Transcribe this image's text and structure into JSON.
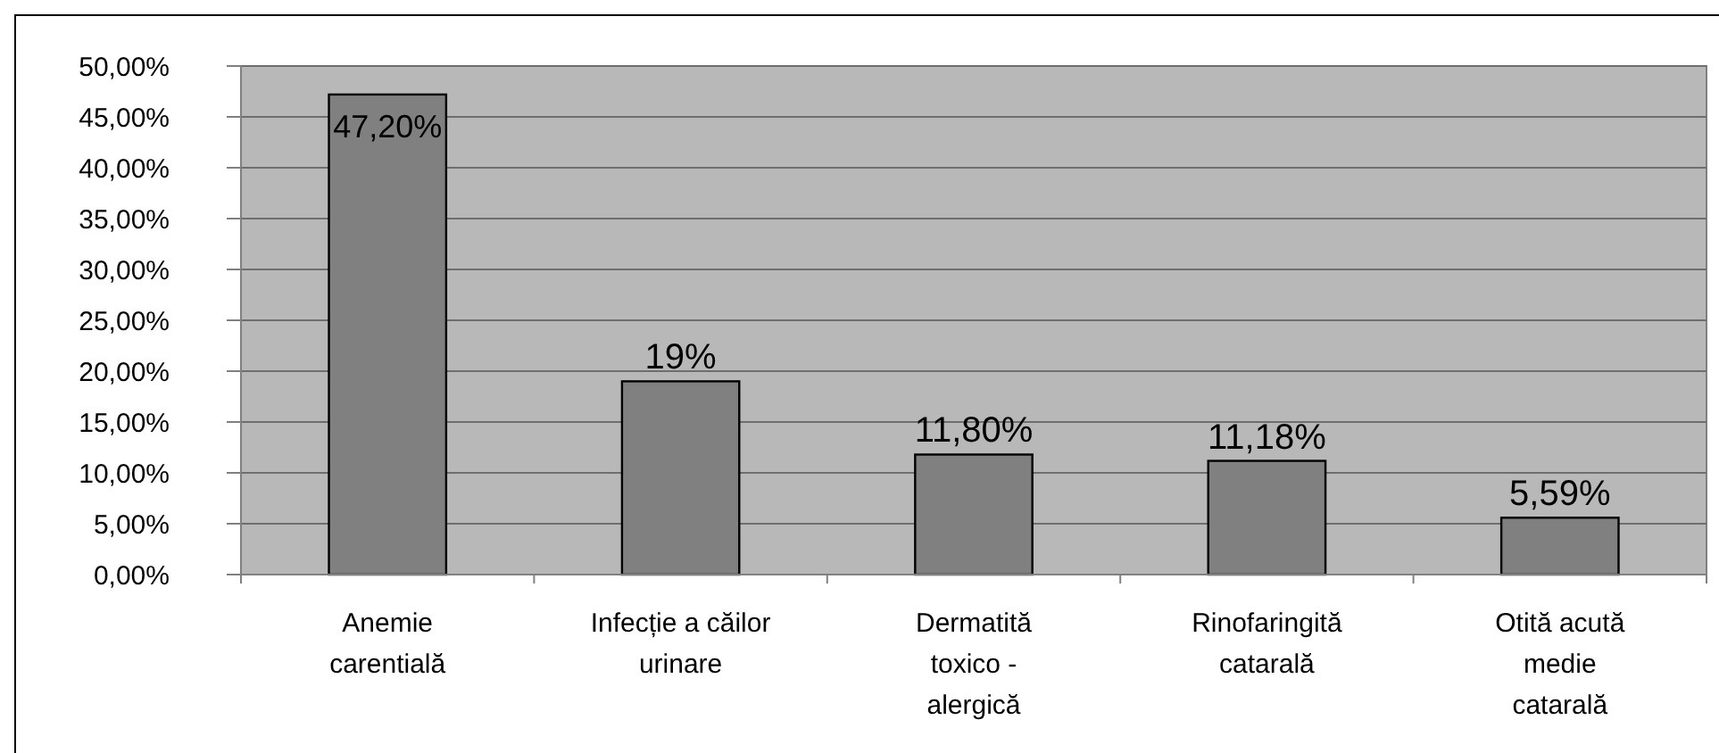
{
  "chart_data": {
    "type": "bar",
    "categories": [
      "Anemie\ncarentială",
      "Infecție a căilor\nurinare",
      "Dermatită\ntoxico -\nalergică",
      "Rinofaringită\ncatarală",
      "Otită acută\nmedie\ncatarală"
    ],
    "values": [
      47.2,
      19,
      11.8,
      11.18,
      5.59
    ],
    "value_labels": [
      "47,20%",
      "19%",
      "11,80%",
      "11,18%",
      "5,59%"
    ],
    "color": "#808080",
    "ylim": [
      0,
      50
    ],
    "yticks": [
      {
        "value": 0,
        "label": "0,00%"
      },
      {
        "value": 5,
        "label": "5,00%"
      },
      {
        "value": 10,
        "label": "10,00%"
      },
      {
        "value": 15,
        "label": "15,00%"
      },
      {
        "value": 20,
        "label": "20,00%"
      },
      {
        "value": 25,
        "label": "25,00%"
      },
      {
        "value": 30,
        "label": "30,00%"
      },
      {
        "value": 35,
        "label": "35,00%"
      },
      {
        "value": 40,
        "label": "40,00%"
      },
      {
        "value": 45,
        "label": "45,00%"
      },
      {
        "value": 50,
        "label": "50,00%"
      }
    ],
    "grid": "y"
  }
}
